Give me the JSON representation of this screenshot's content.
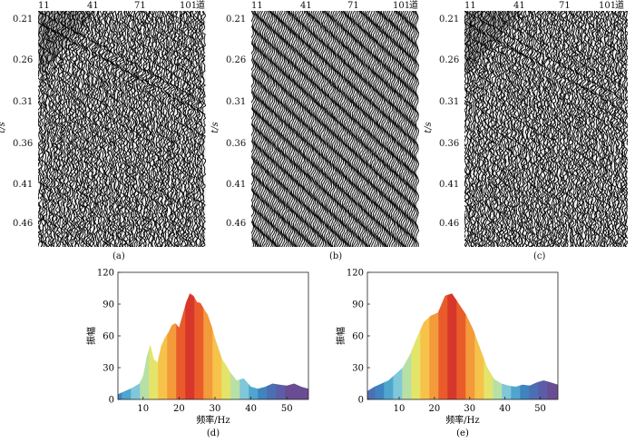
{
  "seismic": {
    "trace_ticks": [
      "11",
      "41",
      "71",
      "101"
    ],
    "trace_unit": "道",
    "time_ticks": [
      "0.21",
      "0.26",
      "0.31",
      "0.36",
      "0.41",
      "0.46"
    ],
    "ylabel": "t/s",
    "captions": [
      "(a)",
      "(b)",
      "(c)"
    ]
  },
  "chart_data": [
    {
      "type": "area",
      "caption": "(d)",
      "xlabel": "频率/Hz",
      "ylabel": "振幅",
      "xlim": [
        3,
        56
      ],
      "ylim": [
        0,
        120
      ],
      "xticks": [
        10,
        20,
        30,
        40,
        50
      ],
      "yticks": [
        0,
        30,
        60,
        90,
        120
      ],
      "x": [
        3,
        5,
        7,
        9,
        10,
        11,
        12,
        13,
        14,
        15,
        16,
        17,
        18,
        19,
        20,
        21,
        22,
        23,
        24,
        25,
        26,
        27,
        28,
        29,
        30,
        31,
        32,
        33,
        34,
        36,
        38,
        40,
        42,
        44,
        46,
        48,
        50,
        52,
        54,
        56
      ],
      "values": [
        5,
        8,
        11,
        15,
        22,
        40,
        52,
        38,
        35,
        50,
        58,
        63,
        70,
        72,
        68,
        80,
        92,
        100,
        98,
        92,
        91,
        85,
        80,
        70,
        58,
        48,
        38,
        33,
        27,
        18,
        20,
        12,
        10,
        12,
        15,
        14,
        13,
        15,
        12,
        10
      ]
    },
    {
      "type": "area",
      "caption": "(e)",
      "xlabel": "频率/Hz",
      "ylabel": "振幅",
      "xlim": [
        1,
        55
      ],
      "ylim": [
        0,
        120
      ],
      "xticks": [
        10,
        20,
        30,
        40,
        50
      ],
      "yticks": [
        0,
        30,
        60,
        90,
        120
      ],
      "x": [
        1,
        3,
        5,
        7,
        9,
        11,
        13,
        15,
        17,
        19,
        21,
        23,
        25,
        27,
        29,
        31,
        33,
        35,
        37,
        39,
        41,
        43,
        45,
        47,
        49,
        51,
        53,
        55
      ],
      "values": [
        8,
        12,
        15,
        18,
        24,
        30,
        42,
        58,
        73,
        79,
        82,
        98,
        100,
        90,
        80,
        66,
        48,
        30,
        19,
        15,
        13,
        12,
        14,
        13,
        16,
        18,
        16,
        14
      ]
    }
  ]
}
